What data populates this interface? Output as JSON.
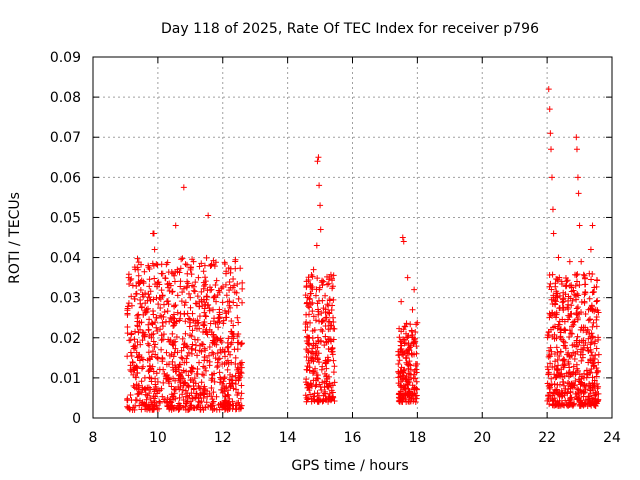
{
  "chart_data": {
    "type": "scatter",
    "title": "Day 118 of 2025, Rate Of TEC Index for receiver p796",
    "xlabel": "GPS time / hours",
    "ylabel": "ROTI / TECUs",
    "xlim": [
      8,
      24
    ],
    "ylim": [
      0,
      0.09
    ],
    "xticks": [
      8,
      10,
      12,
      14,
      16,
      18,
      20,
      22,
      24
    ],
    "yticks": [
      0,
      0.01,
      0.02,
      0.03,
      0.04,
      0.05,
      0.06,
      0.07,
      0.08,
      0.09
    ],
    "xtick_labels": [
      "8",
      "10",
      "12",
      "14",
      "16",
      "18",
      "20",
      "22",
      "24"
    ],
    "ytick_labels": [
      "0",
      "0.01",
      "0.02",
      "0.03",
      "0.04",
      "0.05",
      "0.06",
      "0.07",
      "0.08",
      "0.09"
    ],
    "grid": true,
    "marker": "+",
    "color": "#ff0000",
    "series": [
      {
        "name": "ROTI",
        "points": [
          [
            9.1,
            0.035
          ],
          [
            9.15,
            0.012
          ],
          [
            9.2,
            0.028
          ],
          [
            9.25,
            0.008
          ],
          [
            9.3,
            0.018
          ],
          [
            9.35,
            0.031
          ],
          [
            9.4,
            0.006
          ],
          [
            9.45,
            0.022
          ],
          [
            9.5,
            0.015
          ],
          [
            9.55,
            0.034
          ],
          [
            9.6,
            0.01
          ],
          [
            9.65,
            0.027
          ],
          [
            9.7,
            0.038
          ],
          [
            9.75,
            0.013
          ],
          [
            9.8,
            0.02
          ],
          [
            9.85,
            0.046
          ],
          [
            9.88,
            0.046
          ],
          [
            9.9,
            0.042
          ],
          [
            9.95,
            0.025
          ],
          [
            10.0,
            0.009
          ],
          [
            10.05,
            0.03
          ],
          [
            10.1,
            0.017
          ],
          [
            10.15,
            0.036
          ],
          [
            10.2,
            0.011
          ],
          [
            10.25,
            0.024
          ],
          [
            10.3,
            0.005
          ],
          [
            10.35,
            0.019
          ],
          [
            10.4,
            0.033
          ],
          [
            10.45,
            0.014
          ],
          [
            10.5,
            0.028
          ],
          [
            10.55,
            0.048
          ],
          [
            10.6,
            0.037
          ],
          [
            10.65,
            0.012
          ],
          [
            10.7,
            0.026
          ],
          [
            10.8,
            0.0575
          ],
          [
            10.85,
            0.021
          ],
          [
            10.9,
            0.034
          ],
          [
            10.95,
            0.008
          ],
          [
            11.0,
            0.03
          ],
          [
            11.05,
            0.016
          ],
          [
            11.1,
            0.039
          ],
          [
            11.15,
            0.023
          ],
          [
            11.2,
            0.011
          ],
          [
            11.25,
            0.035
          ],
          [
            11.3,
            0.018
          ],
          [
            11.35,
            0.029
          ],
          [
            11.4,
            0.006
          ],
          [
            11.45,
            0.038
          ],
          [
            11.5,
            0.022
          ],
          [
            11.55,
            0.0505
          ],
          [
            11.6,
            0.014
          ],
          [
            11.65,
            0.032
          ],
          [
            11.7,
            0.027
          ],
          [
            11.75,
            0.009
          ],
          [
            11.8,
            0.02
          ],
          [
            11.85,
            0.013
          ],
          [
            11.9,
            0.024
          ],
          [
            11.95,
            0.007
          ],
          [
            12.0,
            0.017
          ],
          [
            12.1,
            0.036
          ],
          [
            12.15,
            0.012
          ],
          [
            12.2,
            0.028
          ],
          [
            12.25,
            0.008
          ],
          [
            12.3,
            0.021
          ],
          [
            12.35,
            0.033
          ],
          [
            12.4,
            0.015
          ],
          [
            12.45,
            0.025
          ],
          [
            12.5,
            0.01
          ],
          [
            14.6,
            0.012
          ],
          [
            14.65,
            0.02
          ],
          [
            14.7,
            0.031
          ],
          [
            14.75,
            0.008
          ],
          [
            14.8,
            0.037
          ],
          [
            14.85,
            0.015
          ],
          [
            14.9,
            0.043
          ],
          [
            14.92,
            0.064
          ],
          [
            14.95,
            0.065
          ],
          [
            14.97,
            0.058
          ],
          [
            15.0,
            0.053
          ],
          [
            15.02,
            0.047
          ],
          [
            15.05,
            0.024
          ],
          [
            15.1,
            0.034
          ],
          [
            15.15,
            0.011
          ],
          [
            15.2,
            0.019
          ],
          [
            15.25,
            0.028
          ],
          [
            15.3,
            0.006
          ],
          [
            15.35,
            0.017
          ],
          [
            15.4,
            0.025
          ],
          [
            17.45,
            0.006
          ],
          [
            17.5,
            0.029
          ],
          [
            17.55,
            0.045
          ],
          [
            17.58,
            0.044
          ],
          [
            17.6,
            0.012
          ],
          [
            17.65,
            0.021
          ],
          [
            17.7,
            0.035
          ],
          [
            17.75,
            0.009
          ],
          [
            17.8,
            0.018
          ],
          [
            17.85,
            0.027
          ],
          [
            17.9,
            0.032
          ],
          [
            17.95,
            0.013
          ],
          [
            22.05,
            0.082
          ],
          [
            22.08,
            0.077
          ],
          [
            22.1,
            0.071
          ],
          [
            22.12,
            0.067
          ],
          [
            22.15,
            0.06
          ],
          [
            22.18,
            0.052
          ],
          [
            22.2,
            0.046
          ],
          [
            22.25,
            0.03
          ],
          [
            22.3,
            0.012
          ],
          [
            22.35,
            0.04
          ],
          [
            22.4,
            0.022
          ],
          [
            22.45,
            0.034
          ],
          [
            22.5,
            0.009
          ],
          [
            22.55,
            0.018
          ],
          [
            22.6,
            0.033
          ],
          [
            22.65,
            0.014
          ],
          [
            22.7,
            0.039
          ],
          [
            22.75,
            0.026
          ],
          [
            22.8,
            0.011
          ],
          [
            22.85,
            0.024
          ],
          [
            22.9,
            0.07
          ],
          [
            22.92,
            0.067
          ],
          [
            22.95,
            0.06
          ],
          [
            22.97,
            0.056
          ],
          [
            23.0,
            0.048
          ],
          [
            23.05,
            0.039
          ],
          [
            23.1,
            0.017
          ],
          [
            23.15,
            0.029
          ],
          [
            23.2,
            0.008
          ],
          [
            23.25,
            0.022
          ],
          [
            23.3,
            0.036
          ],
          [
            23.35,
            0.042
          ],
          [
            23.4,
            0.048
          ],
          [
            23.45,
            0.013
          ],
          [
            23.5,
            0.027
          ]
        ]
      }
    ],
    "clusters": [
      {
        "start": 9.05,
        "end": 12.6,
        "ymin": 0.002,
        "ymax": 0.04,
        "count": 900
      },
      {
        "start": 14.55,
        "end": 15.45,
        "ymin": 0.004,
        "ymax": 0.036,
        "count": 260
      },
      {
        "start": 17.4,
        "end": 18.0,
        "ymin": 0.004,
        "ymax": 0.024,
        "count": 180
      },
      {
        "start": 22.0,
        "end": 23.6,
        "ymin": 0.003,
        "ymax": 0.036,
        "count": 520
      }
    ]
  }
}
